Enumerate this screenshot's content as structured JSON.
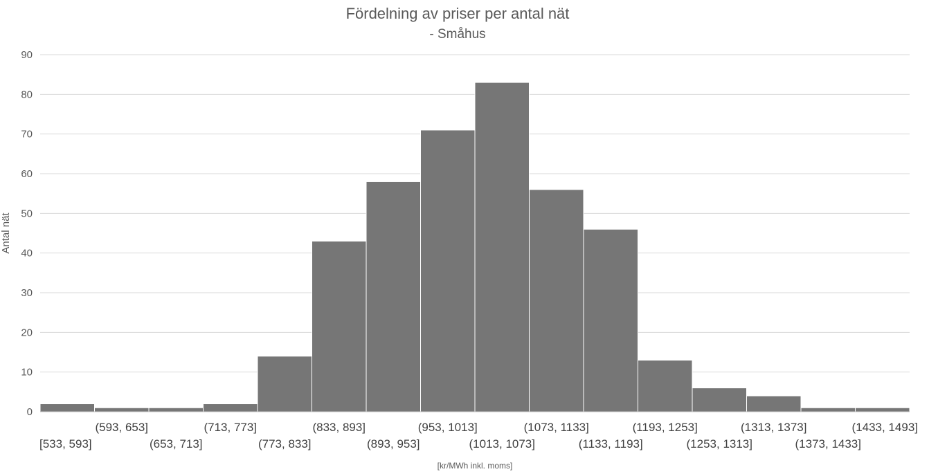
{
  "chart_data": {
    "type": "bar",
    "title": "Fördelning av priser per antal nät",
    "subtitle": "- Småhus",
    "xlabel": "[kr/MWh inkl. moms]",
    "ylabel": "Antal nät",
    "ylim": [
      0,
      90
    ],
    "yticks": [
      0,
      10,
      20,
      30,
      40,
      50,
      60,
      70,
      80,
      90
    ],
    "grid": true,
    "categories": [
      "[533, 593]",
      "(593, 653]",
      "(653, 713]",
      "(713, 773]",
      "(773, 833]",
      "(833, 893]",
      "(893, 953]",
      "(953, 1013]",
      "(1013, 1073]",
      "(1073, 1133]",
      "(1133, 1193]",
      "(1193, 1253]",
      "(1253, 1313]",
      "(1313, 1373]",
      "(1373, 1433]",
      "(1433, 1493]"
    ],
    "values": [
      2,
      1,
      1,
      2,
      14,
      43,
      58,
      71,
      83,
      56,
      46,
      13,
      6,
      4,
      1,
      1
    ],
    "bar_color": "#767676",
    "grid_color": "#d9d9d9"
  }
}
